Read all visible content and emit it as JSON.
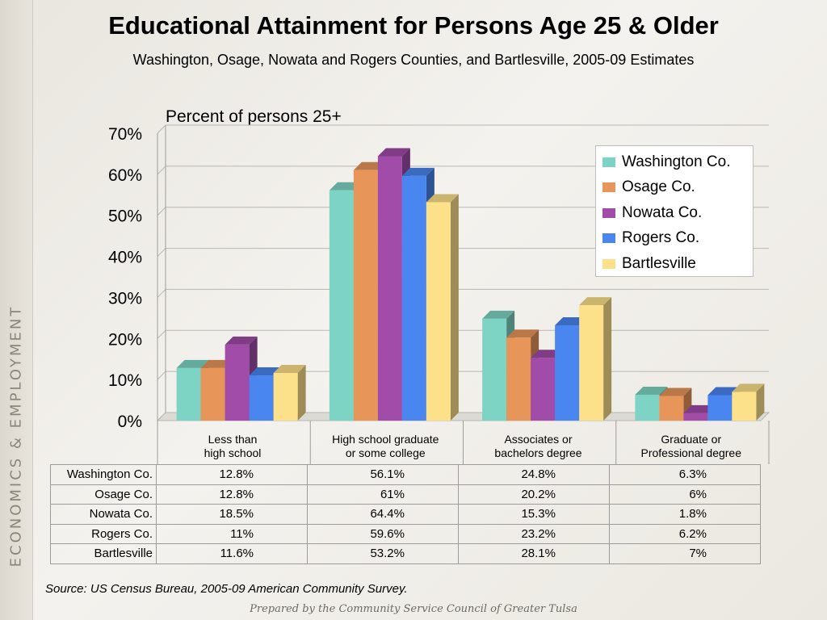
{
  "side_label": "ECONOMICS & EMPLOYMENT",
  "title": "Educational Attainment for Persons Age 25 & Older",
  "subtitle": "Washington, Osage, Nowata and Rogers Counties, and Bartlesville, 2005-09 Estimates",
  "source": "Source:  US Census Bureau, 2005-09 American Community Survey.",
  "footer": "Prepared by the Community Service Council of Greater Tulsa",
  "chart_data": {
    "type": "bar",
    "title": "Educational Attainment for Persons Age 25 & Older",
    "ylabel": "Percent of persons 25+",
    "ylim": [
      0,
      70
    ],
    "yticks": [
      "0%",
      "10%",
      "20%",
      "30%",
      "40%",
      "50%",
      "60%",
      "70%"
    ],
    "grid": true,
    "legend_position": "top-right",
    "categories": [
      "Less than\nhigh school",
      "High school graduate\nor some college",
      "Associates or\nbachelors degree",
      "Graduate or\nProfessional degree"
    ],
    "series": [
      {
        "name": "Washington Co.",
        "color": "#7dd4c4",
        "values": [
          12.8,
          56.1,
          24.8,
          6.3
        ],
        "labels": [
          "12.8%",
          "56.1%",
          "24.8%",
          "6.3%"
        ]
      },
      {
        "name": "Osage Co.",
        "color": "#e8955a",
        "values": [
          12.8,
          61,
          20.2,
          6
        ],
        "labels": [
          "12.8%",
          "61%",
          "20.2%",
          "6%"
        ]
      },
      {
        "name": "Nowata Co.",
        "color": "#a04ca8",
        "values": [
          18.5,
          64.4,
          15.3,
          1.8
        ],
        "labels": [
          "18.5%",
          "64.4%",
          "15.3%",
          "1.8%"
        ]
      },
      {
        "name": "Rogers Co.",
        "color": "#4a86f0",
        "values": [
          11,
          59.6,
          23.2,
          6.2
        ],
        "labels": [
          "11%",
          "59.6%",
          "23.2%",
          "6.2%"
        ]
      },
      {
        "name": "Bartlesville",
        "color": "#fde18a",
        "values": [
          11.6,
          53.2,
          28.1,
          7
        ],
        "labels": [
          "11.6%",
          "53.2%",
          "28.1%",
          "7%"
        ]
      }
    ]
  }
}
